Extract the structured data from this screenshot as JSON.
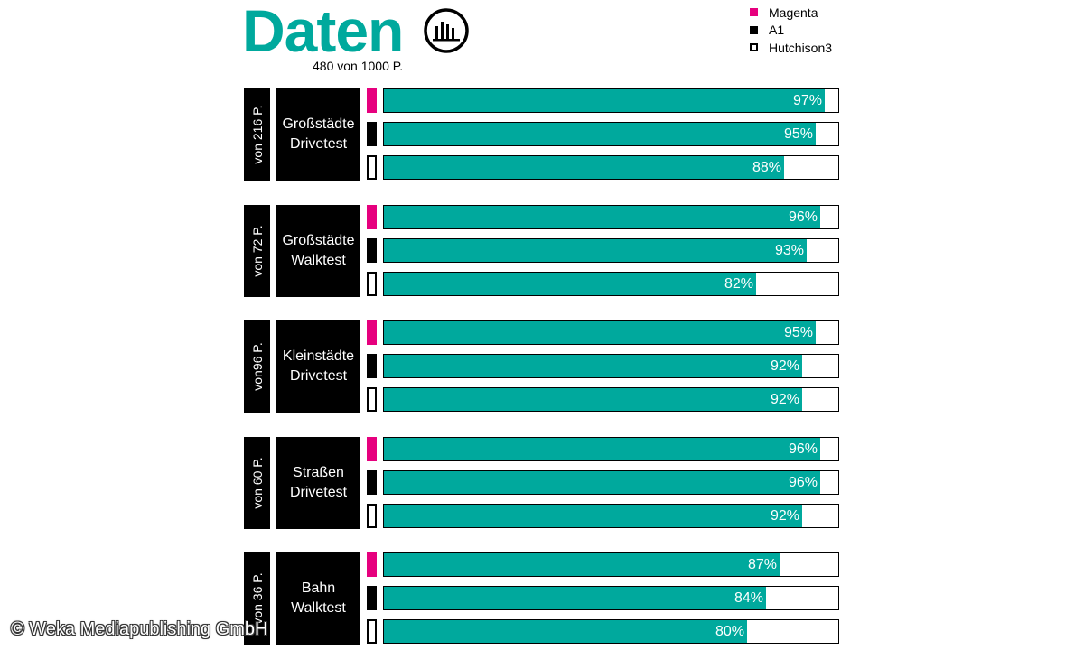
{
  "header": {
    "title": "Daten",
    "subtitle": "480 von 1000 P."
  },
  "legend": [
    {
      "label": "Magenta"
    },
    {
      "label": "A1"
    },
    {
      "label": "Hutchison3"
    }
  ],
  "colors": {
    "teal": "#00a99d",
    "magenta": "#e6007e",
    "a1": "#000000",
    "hutchison3": "#ffffff"
  },
  "chart_data": {
    "type": "bar",
    "orientation": "horizontal",
    "xlim": [
      0,
      100
    ],
    "series": [
      {
        "name": "Magenta"
      },
      {
        "name": "A1"
      },
      {
        "name": "Hutchison3"
      }
    ],
    "groups": [
      {
        "points": "von 216 P.",
        "lines": [
          "Großstädte",
          "Drivetest"
        ],
        "values": [
          97,
          95,
          88
        ],
        "labels": [
          "97%",
          "95%",
          "88%"
        ]
      },
      {
        "points": "von 72 P.",
        "lines": [
          "Großstädte",
          "Walktest"
        ],
        "values": [
          96,
          93,
          82
        ],
        "labels": [
          "96%",
          "93%",
          "82%"
        ]
      },
      {
        "points": "von96 P.",
        "lines": [
          "Kleinstädte",
          "Drivetest"
        ],
        "values": [
          95,
          92,
          92
        ],
        "labels": [
          "95%",
          "92%",
          "92%"
        ]
      },
      {
        "points": "von 60 P.",
        "lines": [
          "Straßen",
          "Drivetest"
        ],
        "values": [
          96,
          96,
          92
        ],
        "labels": [
          "96%",
          "96%",
          "92%"
        ]
      },
      {
        "points": "von 36 P.",
        "lines": [
          "Bahn",
          "Walktest"
        ],
        "values": [
          87,
          84,
          80
        ],
        "labels": [
          "87%",
          "84%",
          "80%"
        ]
      }
    ]
  },
  "footer": {
    "copyright": "© Weka Mediapublishing GmbH"
  }
}
